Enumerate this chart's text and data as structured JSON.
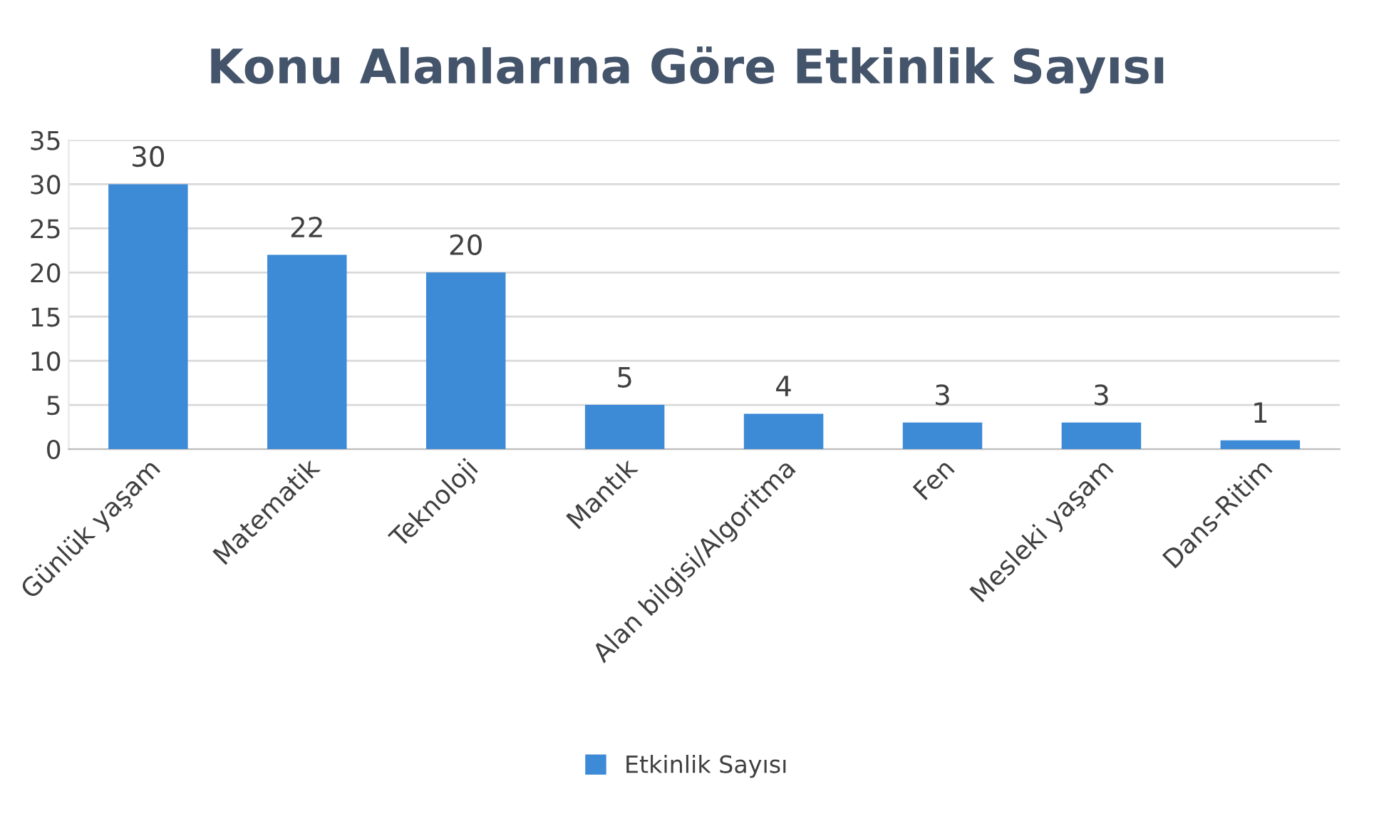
{
  "chart_data": {
    "type": "bar",
    "title": "Konu Alanlarına Göre Etkinlik Sayısı",
    "categories": [
      "Günlük yaşam",
      "Matematik",
      "Teknoloji",
      "Mantık",
      "Alan bilgisi/Algoritma",
      "Fen",
      "Mesleki yaşam",
      "Dans-Ritim"
    ],
    "series": [
      {
        "name": "Etkinlik Sayısı",
        "color": "#3d8ad6",
        "values": [
          30,
          22,
          20,
          5,
          4,
          3,
          3,
          1
        ]
      }
    ],
    "ylim": [
      0,
      35
    ],
    "yticks": [
      0,
      5,
      10,
      15,
      20,
      25,
      30,
      35
    ],
    "grid": "y",
    "legend": "bottom",
    "data_labels": true
  }
}
